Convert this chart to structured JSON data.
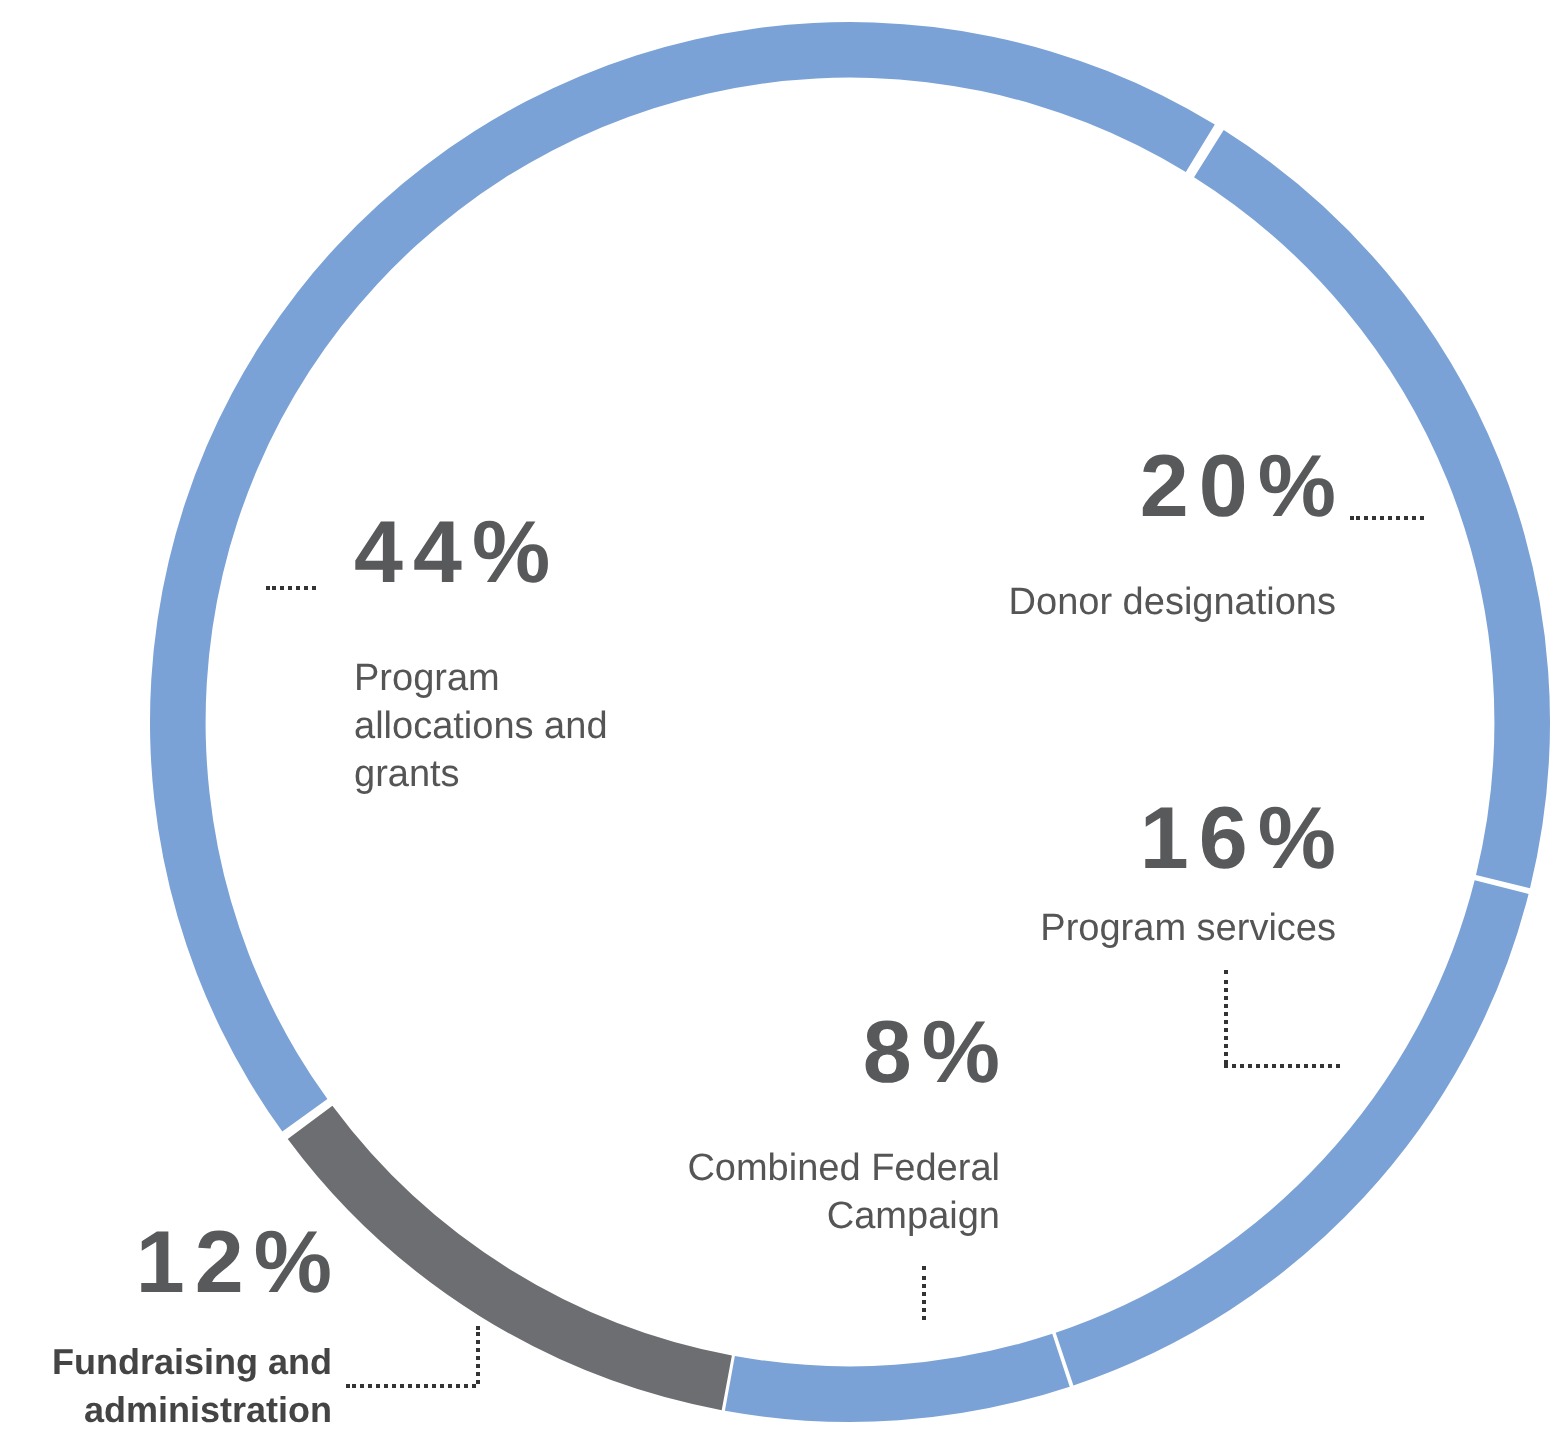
{
  "chart_data": {
    "type": "donut",
    "categories": [
      "Donor designations",
      "Program services",
      "Combined Federal Campaign",
      "Fundraising and administration",
      "Program allocations and grants"
    ],
    "values": [
      20,
      16,
      8,
      12,
      44
    ],
    "colors": [
      "#7ba2d6",
      "#7ba2d6",
      "#7ba2d6",
      "#6d6e71",
      "#7ba2d6"
    ],
    "value_labels": [
      "20%",
      "16%",
      "8%",
      "12%",
      "44%"
    ],
    "legend": false
  }
}
